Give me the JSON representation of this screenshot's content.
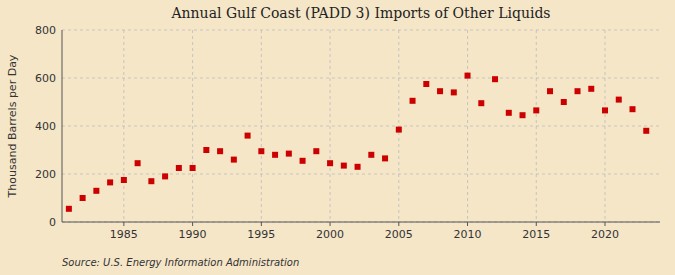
{
  "chart_data": {
    "type": "scatter",
    "title": "Annual Gulf Coast (PADD 3) Imports of Other Liquids",
    "y_label": "Thousand Barrels per Day",
    "annotations": [
      "Source: U.S. Energy Information Administration"
    ],
    "x": [
      1981,
      1982,
      1983,
      1984,
      1985,
      1986,
      1987,
      1988,
      1989,
      1990,
      1991,
      1992,
      1993,
      1994,
      1995,
      1996,
      1997,
      1998,
      1999,
      2000,
      2001,
      2002,
      2003,
      2004,
      2005,
      2006,
      2007,
      2008,
      2009,
      2010,
      2011,
      2012,
      2013,
      2014,
      2015,
      2016,
      2017,
      2018,
      2019,
      2020,
      2021,
      2022,
      2023
    ],
    "values": [
      55,
      100,
      130,
      165,
      175,
      245,
      170,
      190,
      225,
      225,
      300,
      295,
      260,
      360,
      295,
      280,
      285,
      255,
      295,
      245,
      235,
      230,
      280,
      265,
      385,
      505,
      575,
      545,
      540,
      610,
      495,
      595,
      455,
      445,
      465,
      545,
      500,
      545,
      555,
      465,
      510,
      470,
      380
    ],
    "color": "#cc0000",
    "marker": "square",
    "xlim": [
      1980.5,
      2024
    ],
    "xticks": [
      1985,
      1990,
      1995,
      2000,
      2005,
      2010,
      2015,
      2020
    ],
    "ylim": [
      0,
      800
    ],
    "yticks": [
      0,
      200,
      400,
      600,
      800
    ],
    "grid": true
  }
}
